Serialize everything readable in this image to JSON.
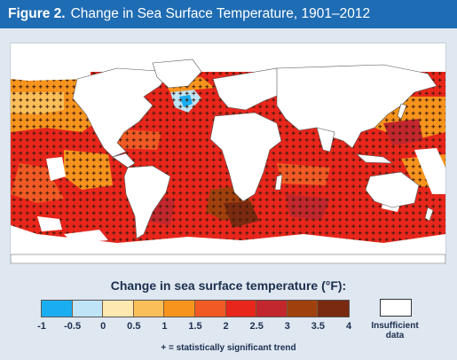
{
  "header": {
    "figure_label": "Figure 2.",
    "title": "Change in Sea Surface Temperature, 1901–2012"
  },
  "legend": {
    "title": "Change in sea surface temperature (°F):",
    "tick_labels": [
      "-1",
      "-0.5",
      "0",
      "0.5",
      "1",
      "1.5",
      "2",
      "2.5",
      "3",
      "3.5",
      "4"
    ],
    "colors": [
      "#1aaef0",
      "#bfe4f7",
      "#fde8b0",
      "#fbbf5a",
      "#f7941d",
      "#f15a24",
      "#e8261c",
      "#c1272d",
      "#a0410d",
      "#7a2a10",
      "#5c0f0f"
    ],
    "insufficient_label_line1": "Insufficient",
    "insufficient_label_line2": "data"
  },
  "footnote": "+ = statistically significant trend",
  "map": {
    "ocean_default_color": "#e8261c",
    "land_color": "#ffffff",
    "significance_marker": "+"
  }
}
